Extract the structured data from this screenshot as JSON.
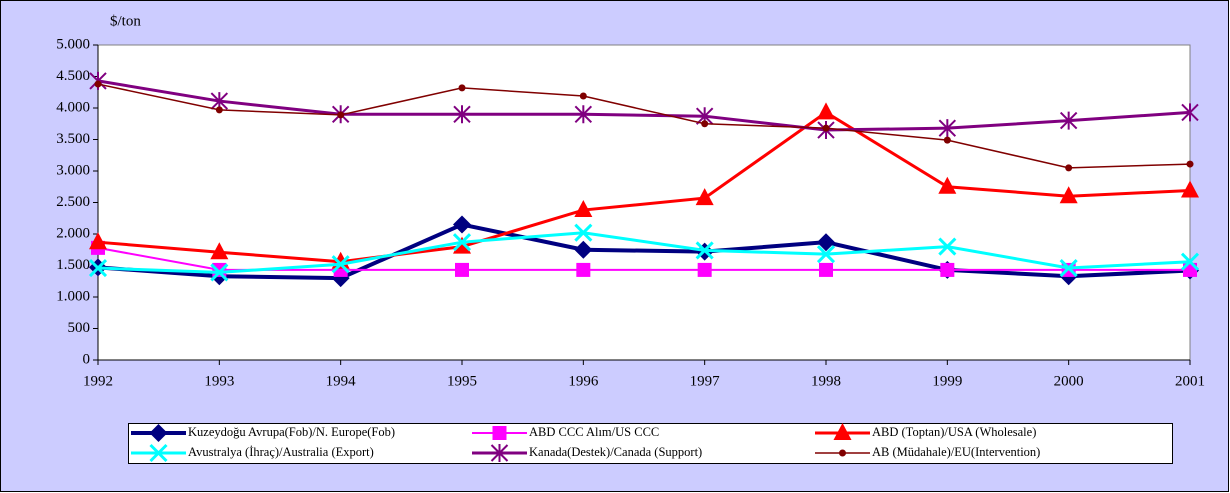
{
  "chart_data": {
    "type": "line",
    "y_axis_label": "$/ton",
    "x": [
      1992,
      1993,
      1994,
      1995,
      1996,
      1997,
      1998,
      1999,
      2000,
      2001
    ],
    "xlim": [
      1992,
      2001
    ],
    "xticks": [
      1992,
      1993,
      1994,
      1995,
      1996,
      1997,
      1998,
      1999,
      2000,
      2001
    ],
    "ylim": [
      0,
      5000
    ],
    "yticks": [
      0,
      500,
      {
        "value": 1000,
        "label": "1.000"
      },
      {
        "value": 1500,
        "label": "1.500"
      },
      {
        "value": 2000,
        "label": "2.000"
      },
      {
        "value": 2500,
        "label": "2.500"
      },
      {
        "value": 3000,
        "label": "3.000"
      },
      {
        "value": 3500,
        "label": "3.500"
      },
      {
        "value": 4000,
        "label": "4.000"
      },
      {
        "value": 4500,
        "label": "4.500"
      },
      {
        "value": 5000,
        "label": "5.000"
      }
    ],
    "grid": false,
    "legend": "bottom",
    "series": [
      {
        "name": "Kuzeydoğu Avrupa(Fob)/N. Europe(Fob)",
        "color": "#000080",
        "marker": "diamond",
        "line_width": 4,
        "values": [
          1470,
          1330,
          1300,
          2150,
          1750,
          1720,
          1870,
          1430,
          1330,
          1420
        ]
      },
      {
        "name": "ABD CCC Alım/US CCC",
        "color": "#ff00ff",
        "marker": "square",
        "line_width": 2,
        "values": [
          1780,
          1430,
          1430,
          1430,
          1430,
          1430,
          1430,
          1430,
          1430,
          1430
        ]
      },
      {
        "name": "ABD (Toptan)/USA (Wholesale)",
        "color": "#ff0000",
        "marker": "triangle",
        "line_width": 3,
        "values": [
          1870,
          1710,
          1560,
          1800,
          2380,
          2570,
          3930,
          2750,
          2600,
          2690
        ]
      },
      {
        "name": "Avustralya (İhraç)/Australia (Export)",
        "color": "#00ffff",
        "marker": "x",
        "line_width": 3,
        "values": [
          1460,
          1390,
          1520,
          1870,
          2020,
          1740,
          1680,
          1800,
          1460,
          1560
        ]
      },
      {
        "name": "Kanada(Destek)/Canada (Support)",
        "color": "#800080",
        "marker": "star",
        "line_width": 3,
        "values": [
          4430,
          4110,
          3900,
          3900,
          3900,
          3870,
          3650,
          3680,
          3800,
          3930
        ]
      },
      {
        "name": "AB (Müdahale)/EU(Intervention)",
        "color": "#800000",
        "marker": "circle",
        "line_width": 1.5,
        "values": [
          4380,
          3970,
          3890,
          4320,
          4190,
          3750,
          3680,
          3490,
          3050,
          3110
        ]
      }
    ]
  }
}
